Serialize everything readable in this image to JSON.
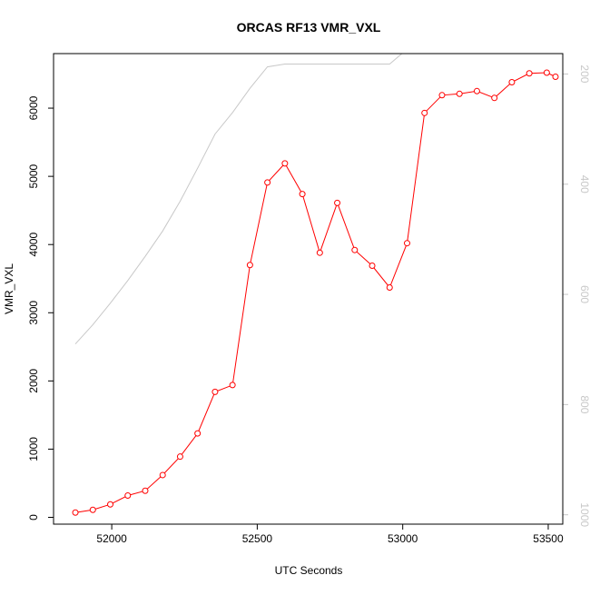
{
  "chart_data": {
    "type": "line",
    "title": "ORCAS RF13 VMR_VXL",
    "xlabel": "UTC Seconds",
    "ylabel": "VMR_VXL",
    "xlim": [
      51800,
      53550
    ],
    "ylim": [
      -100,
      6800
    ],
    "x_ticks": [
      52000,
      52500,
      53000,
      53500
    ],
    "y_ticks": [
      0,
      1000,
      2000,
      3000,
      4000,
      5000,
      6000
    ],
    "grid": false,
    "series": [
      {
        "color": "#ff0000",
        "axis": "left",
        "markers": "open-circle",
        "x": [
          51875,
          51935,
          51995,
          52055,
          52115,
          52175,
          52235,
          52295,
          52355,
          52415,
          52475,
          52535,
          52595,
          52655,
          52715,
          52775,
          52835,
          52895,
          52955,
          53015,
          53075,
          53135,
          53195,
          53255,
          53315,
          53375,
          53435,
          53495,
          53525
        ],
        "y": [
          70,
          110,
          190,
          320,
          390,
          620,
          890,
          1230,
          1840,
          1940,
          3700,
          4910,
          5190,
          4740,
          3880,
          4610,
          3920,
          3690,
          3370,
          4020,
          5930,
          6190,
          6210,
          6250,
          6150,
          6380,
          6510,
          6520,
          6460
        ]
      },
      {
        "color": "#c8c8c8",
        "axis": "right",
        "markers": "none",
        "x": [
          51875,
          51935,
          51995,
          52055,
          52115,
          52175,
          52235,
          52295,
          52355,
          52415,
          52475,
          52535,
          52595,
          52655,
          52715,
          52775,
          52835,
          52895,
          52955,
          53015,
          53075
        ],
        "y": [
          690,
          655,
          616,
          575,
          531,
          485,
          431,
          371,
          309,
          270,
          226,
          187,
          182,
          182,
          182,
          182,
          182,
          182,
          182,
          155,
          100
        ]
      }
    ],
    "right_axis": {
      "reversed": true,
      "ylim": [
        163,
        1017
      ],
      "ticks": [
        200,
        400,
        600,
        800,
        1000
      ],
      "color": "#c8c8c8"
    }
  }
}
